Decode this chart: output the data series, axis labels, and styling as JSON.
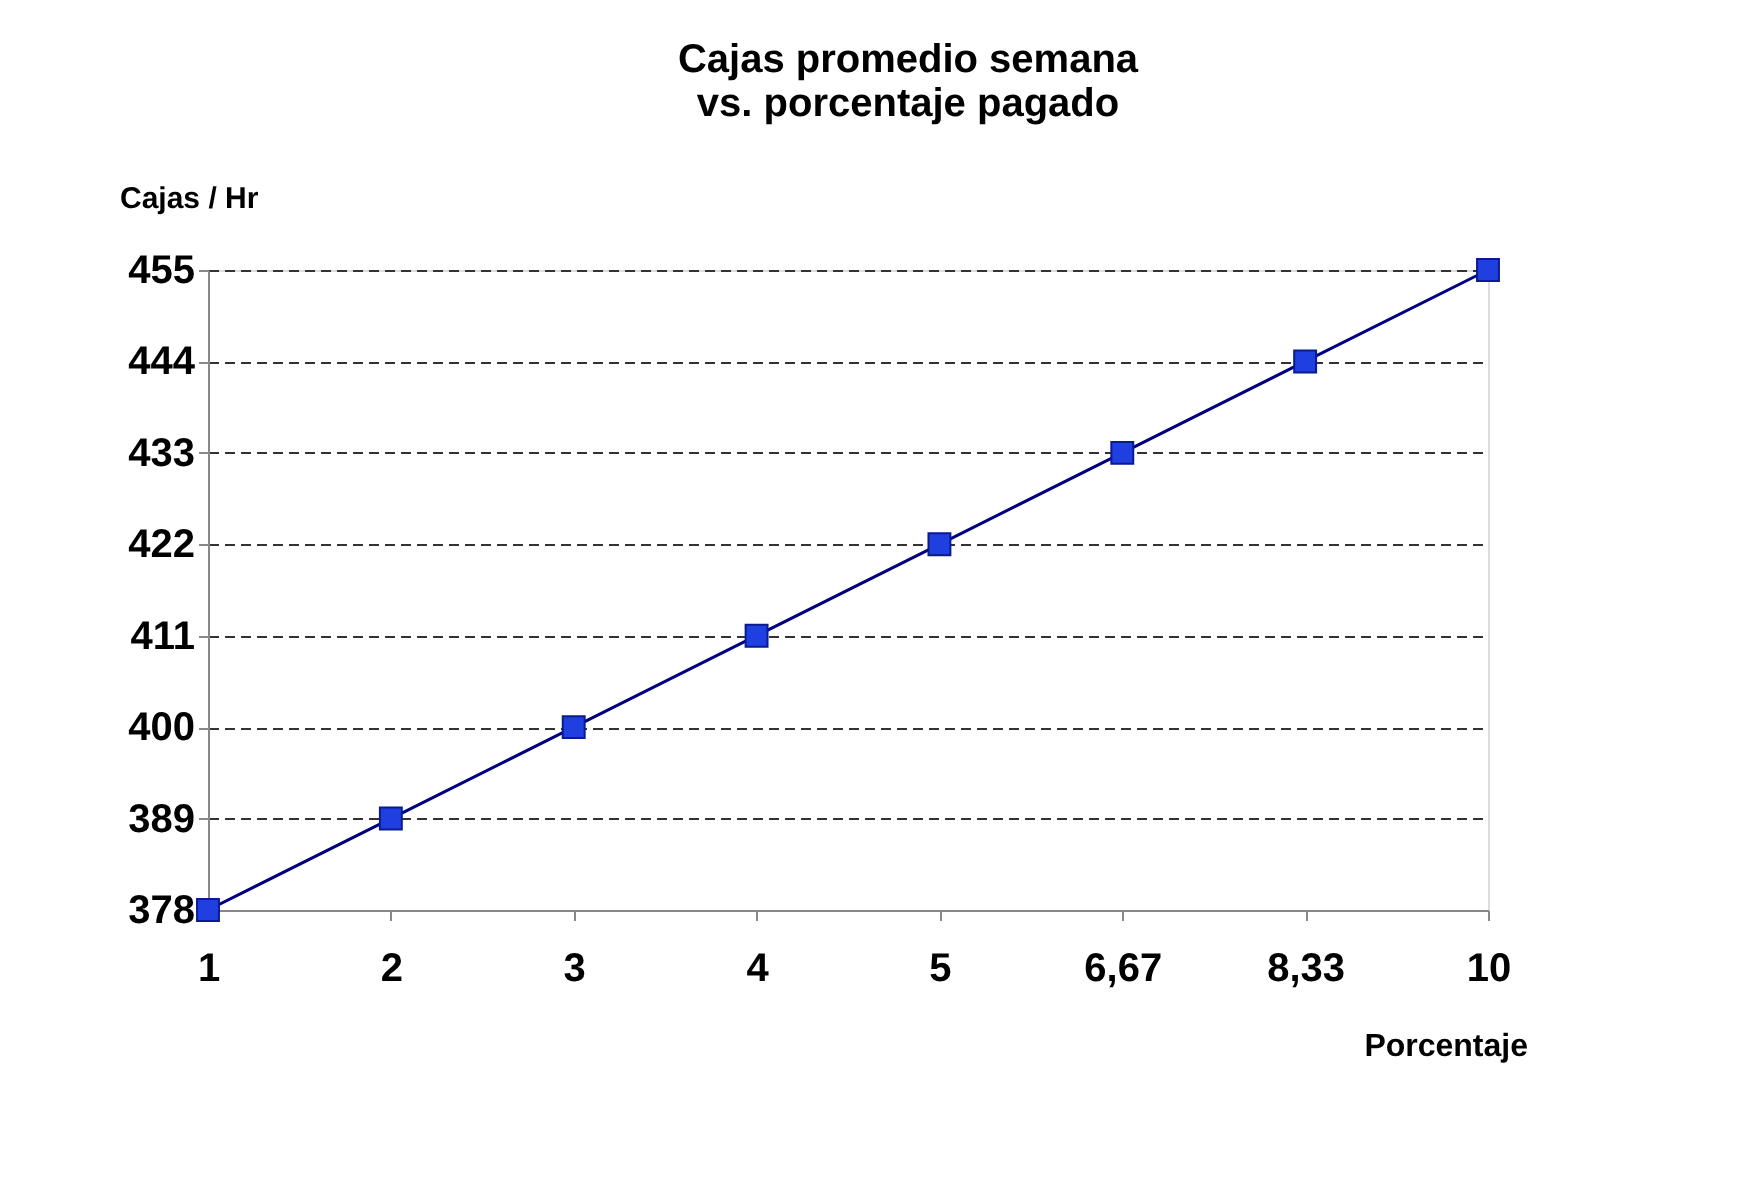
{
  "chart_data": {
    "type": "line",
    "title": "Cajas promedio semana\nvs. porcentaje pagado",
    "xlabel": "Porcentaje",
    "ylabel": "Cajas / Hr",
    "categories": [
      "1",
      "2",
      "3",
      "4",
      "5",
      "6,67",
      "8,33",
      "10"
    ],
    "series": [
      {
        "color": "#1f3fe0",
        "values": [
          378,
          389,
          400,
          411,
          422,
          433,
          444,
          455
        ]
      }
    ],
    "ylim": [
      378,
      455
    ],
    "yticks": [
      378,
      389,
      400,
      411,
      422,
      433,
      444,
      455
    ],
    "grid": "y",
    "marker": "square",
    "line_style": "solid"
  }
}
